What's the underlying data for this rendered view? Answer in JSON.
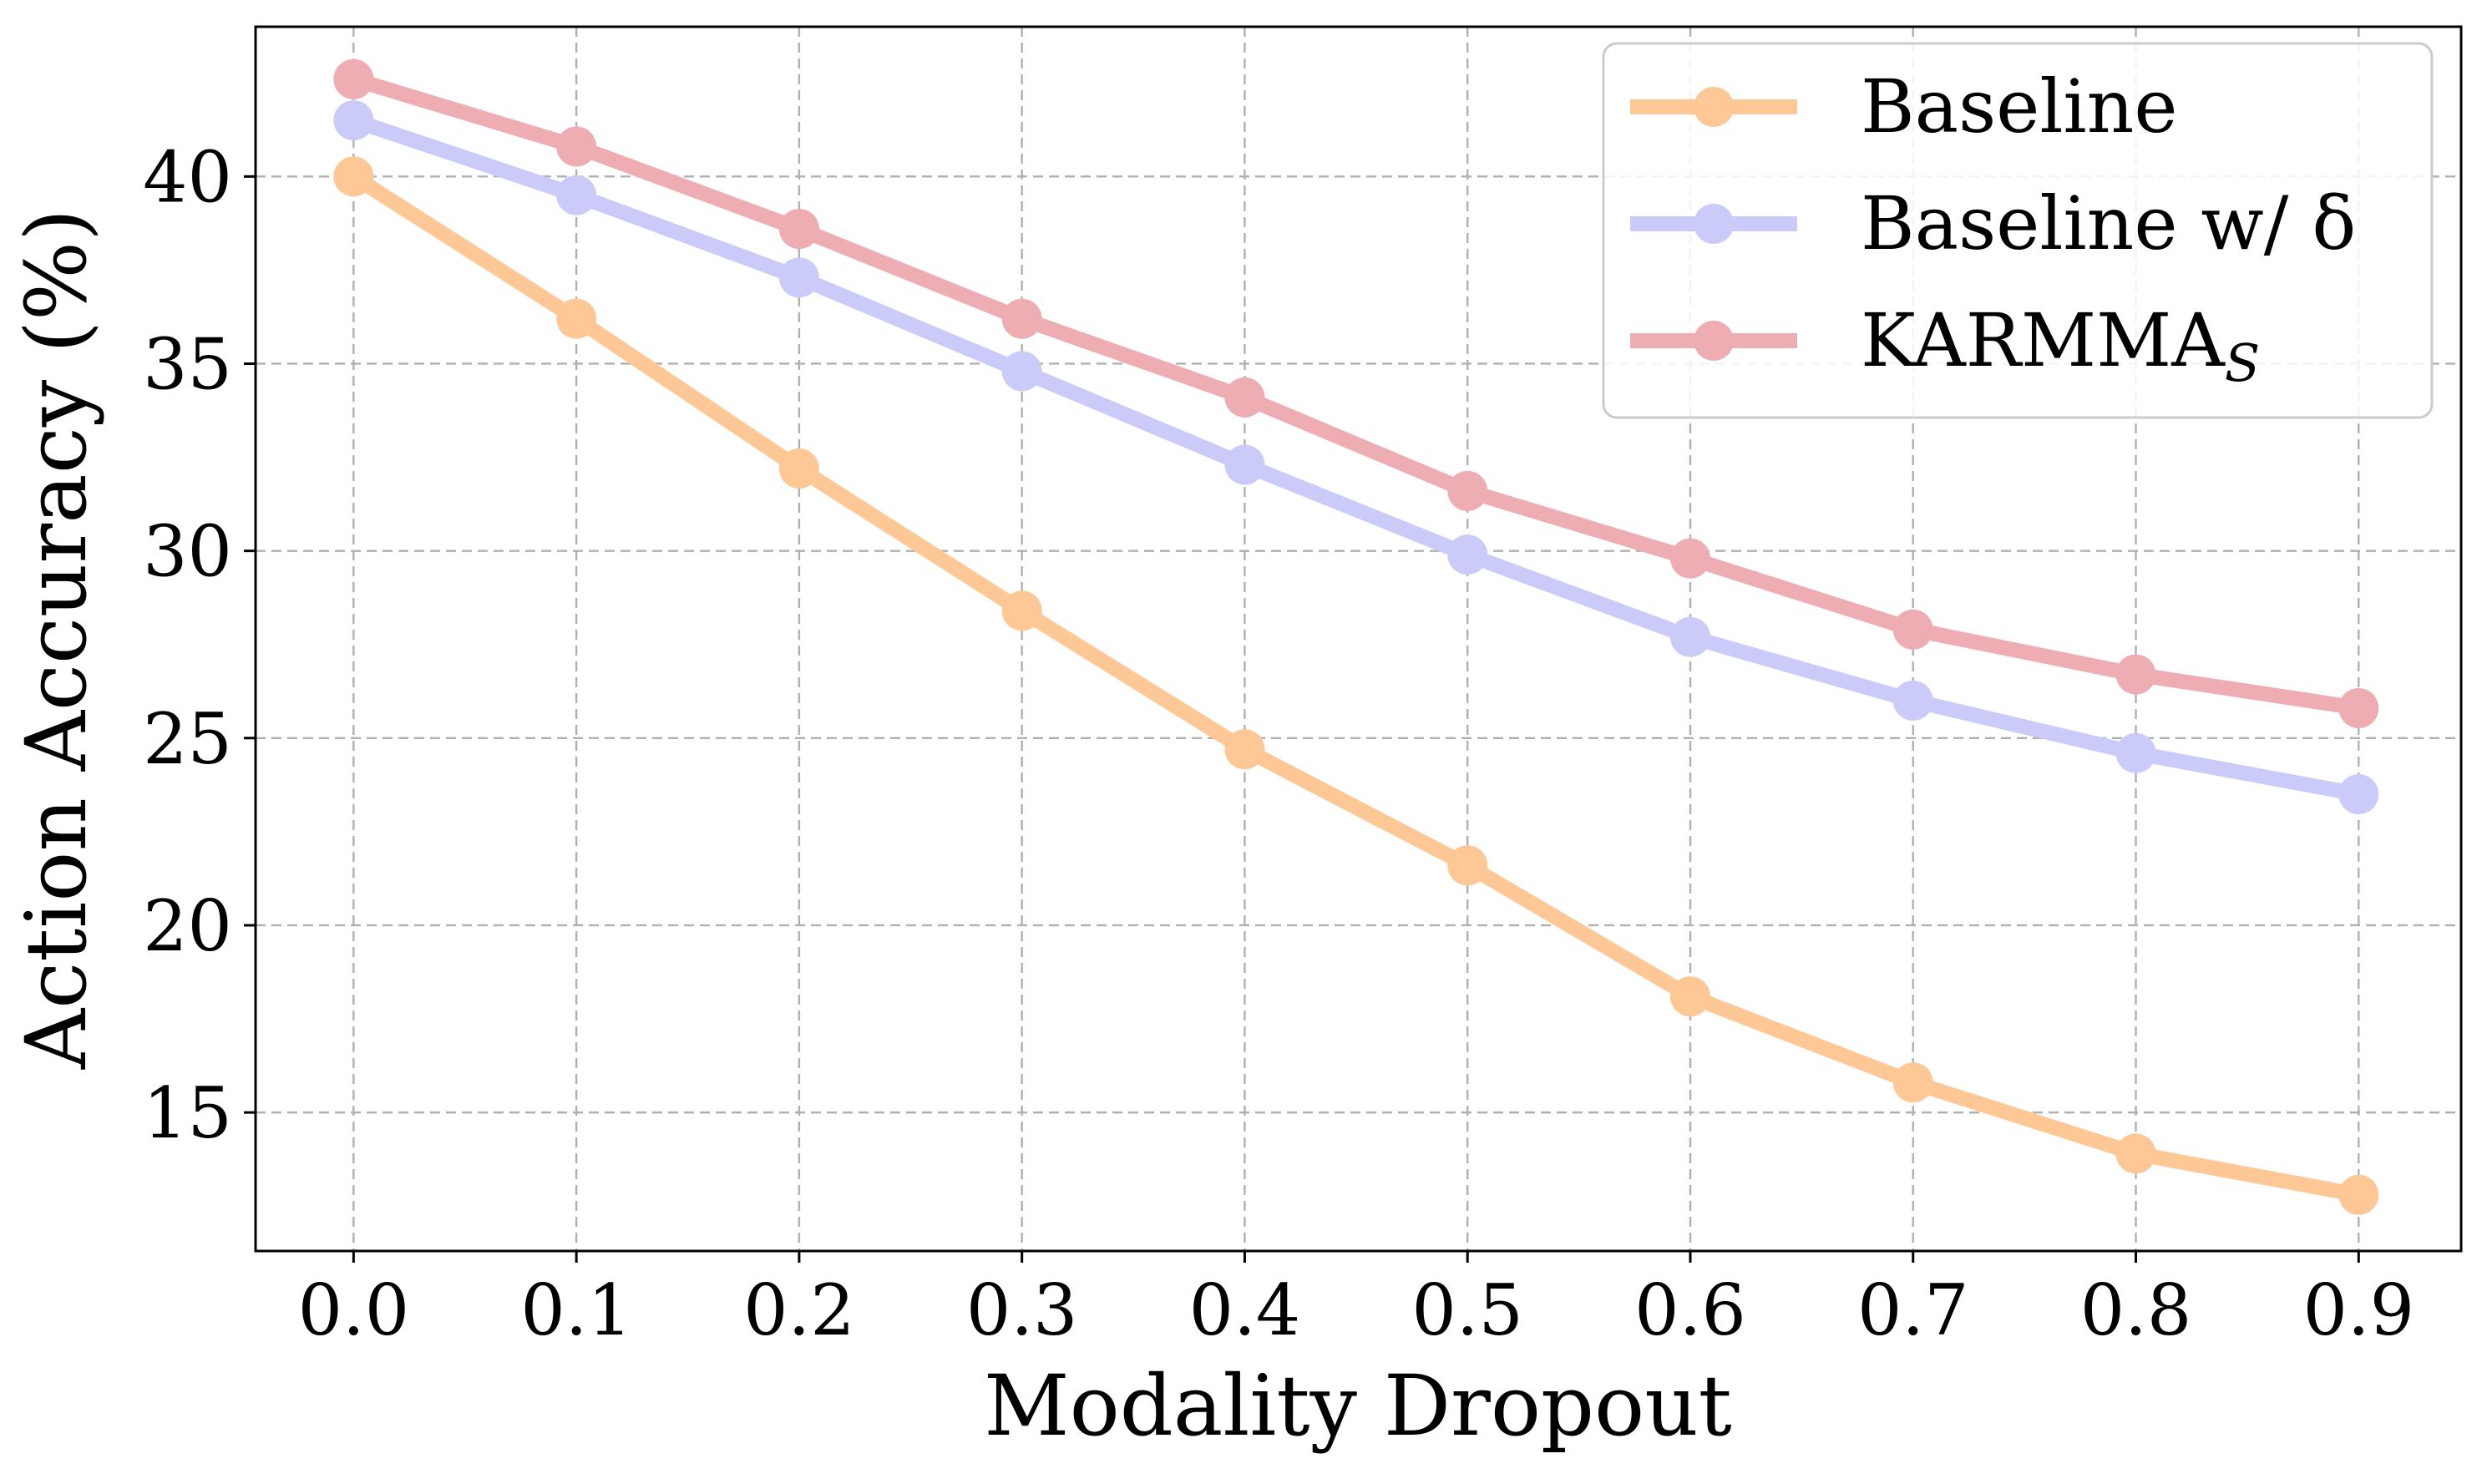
{
  "chart_data": {
    "type": "line",
    "title": "",
    "xlabel": "Modality Dropout",
    "ylabel": "Action Accuracy (%)",
    "x": [
      0.0,
      0.1,
      0.2,
      0.3,
      0.4,
      0.5,
      0.6,
      0.7,
      0.8,
      0.9
    ],
    "x_tick_labels": [
      "0.0",
      "0.1",
      "0.2",
      "0.3",
      "0.4",
      "0.5",
      "0.6",
      "0.7",
      "0.8",
      "0.9"
    ],
    "y_ticks": [
      15,
      20,
      25,
      30,
      35,
      40
    ],
    "y_tick_labels": [
      "15",
      "20",
      "25",
      "30",
      "35",
      "40"
    ],
    "xlim": [
      -0.044,
      0.946
    ],
    "ylim": [
      11.3,
      44.0
    ],
    "grid": true,
    "legend_position": "top-right",
    "series": [
      {
        "name": "Baseline",
        "color": "#fec896",
        "values": [
          40.0,
          36.2,
          32.2,
          28.4,
          24.7,
          21.6,
          18.1,
          15.8,
          13.9,
          12.8
        ]
      },
      {
        "name": "Baseline w/ δ",
        "color": "#cbcbfa",
        "values": [
          41.5,
          39.5,
          37.3,
          34.8,
          32.3,
          29.9,
          27.7,
          26.0,
          24.6,
          23.5
        ]
      },
      {
        "name": "KARMMA",
        "name_subscript": "S",
        "color": "#eeacb3",
        "values": [
          42.6,
          40.8,
          38.6,
          36.2,
          34.1,
          31.6,
          29.8,
          27.9,
          26.7,
          25.8
        ]
      }
    ]
  }
}
